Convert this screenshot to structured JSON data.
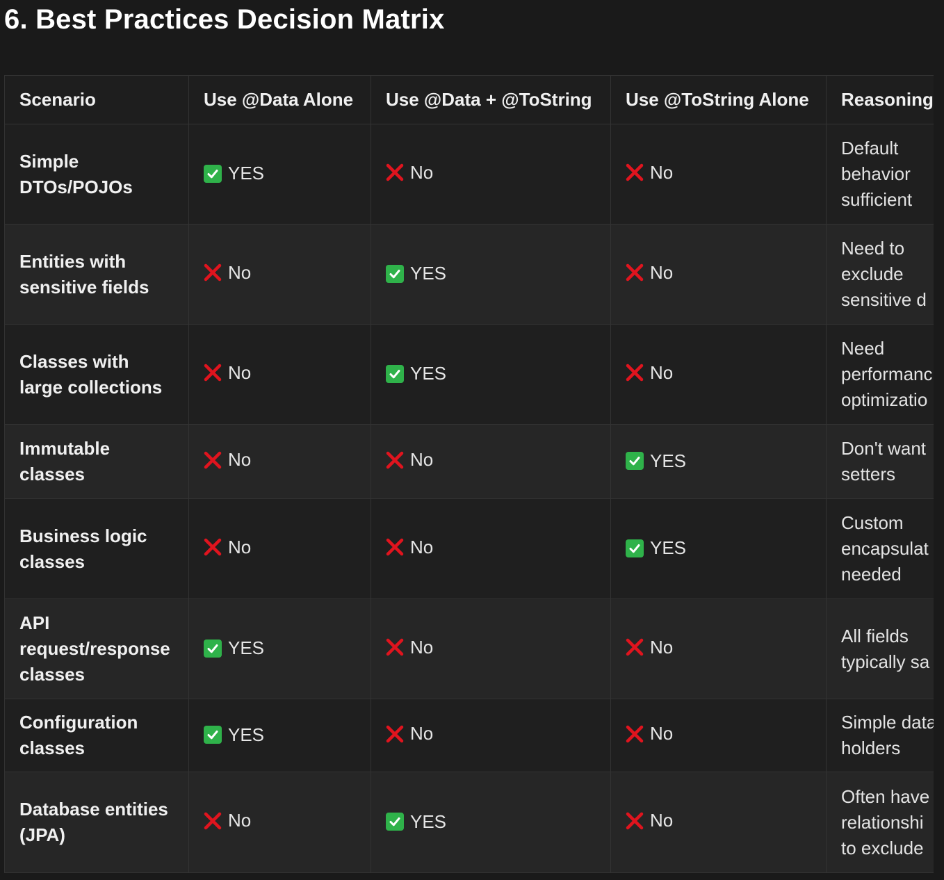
{
  "title": "6. Best Practices Decision Matrix",
  "colors": {
    "background": "#1a1a1a",
    "check": "#2fb24a",
    "cross": "#e0141e"
  },
  "icons": {
    "yes": "check-mark-button-icon",
    "no": "cross-mark-icon"
  },
  "table": {
    "headers": [
      "Scenario",
      "Use @Data Alone",
      "Use @Data + @ToString",
      "Use @ToString Alone",
      "Reasoning"
    ],
    "rows": [
      {
        "scenario": [
          "Simple",
          "DTOs/POJOs"
        ],
        "data_alone": "YES",
        "data_tostring": "No",
        "tostring_alone": "No",
        "reasoning": [
          "Default",
          "behavior",
          "sufficient"
        ]
      },
      {
        "scenario": [
          "Entities with",
          "sensitive fields"
        ],
        "data_alone": "No",
        "data_tostring": "YES",
        "tostring_alone": "No",
        "reasoning": [
          "Need to",
          "exclude",
          "sensitive d"
        ]
      },
      {
        "scenario": [
          "Classes with",
          "large collections"
        ],
        "data_alone": "No",
        "data_tostring": "YES",
        "tostring_alone": "No",
        "reasoning": [
          "Need",
          "performanc",
          "optimizatio"
        ]
      },
      {
        "scenario": [
          "Immutable",
          "classes"
        ],
        "data_alone": "No",
        "data_tostring": "No",
        "tostring_alone": "YES",
        "reasoning": [
          "Don't want",
          "setters"
        ]
      },
      {
        "scenario": [
          "Business logic",
          "classes"
        ],
        "data_alone": "No",
        "data_tostring": "No",
        "tostring_alone": "YES",
        "reasoning": [
          "Custom",
          "encapsulat",
          "needed"
        ]
      },
      {
        "scenario": [
          "API",
          "request/response",
          "classes"
        ],
        "data_alone": "YES",
        "data_tostring": "No",
        "tostring_alone": "No",
        "reasoning": [
          "All fields",
          "typically sa"
        ]
      },
      {
        "scenario": [
          "Configuration",
          "classes"
        ],
        "data_alone": "YES",
        "data_tostring": "No",
        "tostring_alone": "No",
        "reasoning": [
          "Simple data",
          "holders"
        ]
      },
      {
        "scenario": [
          "Database entities",
          "(JPA)"
        ],
        "data_alone": "No",
        "data_tostring": "YES",
        "tostring_alone": "No",
        "reasoning": [
          "Often have",
          "relationshi",
          "to exclude"
        ]
      }
    ]
  }
}
